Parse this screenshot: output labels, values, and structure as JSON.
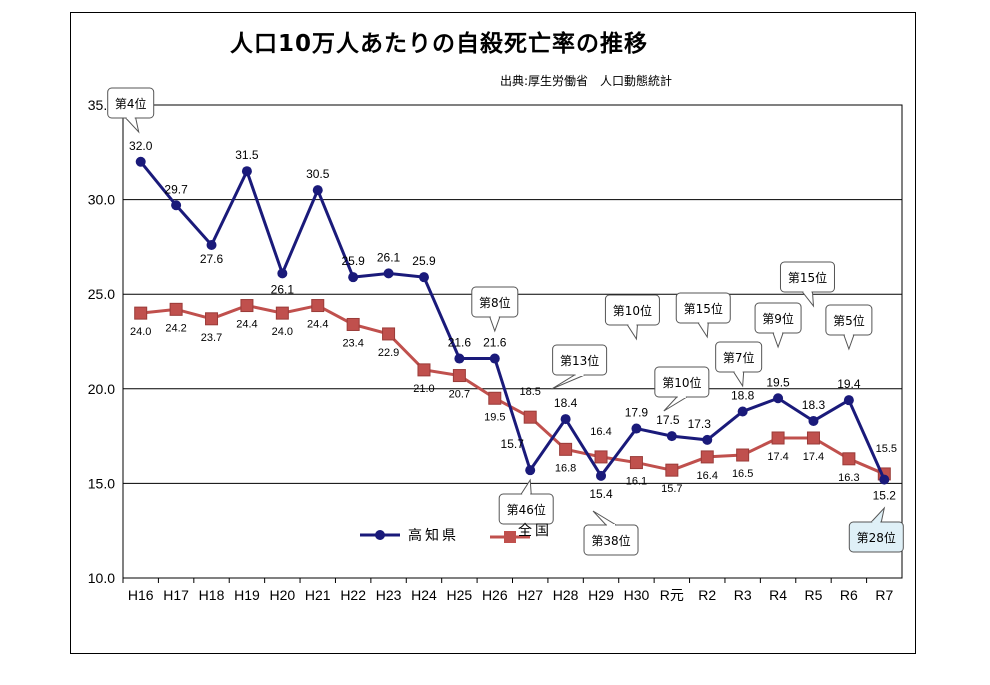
{
  "title": "人口10万人あたりの自殺死亡率の推移",
  "source": "出典:厚生労働省　人口動態統計",
  "colors": {
    "kochi": "#1a1a7a",
    "national": "#c0504d",
    "national_stroke": "#9a3b38",
    "highlight_box": "#dff0f7"
  },
  "chart_data": {
    "type": "line",
    "categories": [
      "H16",
      "H17",
      "H18",
      "H19",
      "H20",
      "H21",
      "H22",
      "H23",
      "H24",
      "H25",
      "H26",
      "H27",
      "H28",
      "H29",
      "H30",
      "R元",
      "R2",
      "R3",
      "R4",
      "R5",
      "R6",
      "R7"
    ],
    "ylim": [
      10.0,
      35.0
    ],
    "yticks": [
      "10.0",
      "15.0",
      "20.0",
      "25.0",
      "30.0",
      "35.0"
    ],
    "grid": true,
    "legend_position": "bottom-left",
    "series": [
      {
        "name": "高知県",
        "values": [
          32.0,
          29.7,
          27.6,
          31.5,
          26.1,
          30.5,
          25.9,
          26.1,
          25.9,
          21.6,
          21.6,
          15.7,
          18.4,
          15.4,
          17.9,
          17.5,
          17.3,
          18.8,
          19.5,
          18.3,
          19.4,
          15.2
        ]
      },
      {
        "name": "全国",
        "values": [
          24.0,
          24.2,
          23.7,
          24.4,
          24.0,
          24.4,
          23.4,
          22.9,
          21.0,
          20.7,
          19.5,
          18.5,
          16.8,
          16.4,
          16.1,
          15.7,
          16.4,
          16.5,
          17.4,
          17.4,
          16.3,
          15.5
        ]
      }
    ],
    "kochi_labels": [
      "32.0",
      "29.7",
      "27.6",
      "31.5",
      "26.1",
      "30.5",
      "25.9",
      "26.1",
      "25.9",
      "21.6",
      "21.6",
      "15.7",
      "18.4",
      "15.4",
      "17.9",
      "17.5",
      "17.3",
      "18.8",
      "19.5",
      "18.3",
      "19.4",
      "15.2"
    ],
    "national_labels": [
      "24.0",
      "24.2",
      "23.7",
      "24.4",
      "24.0",
      "24.4",
      "23.4",
      "22.9",
      "21.0",
      "20.7",
      "19.5",
      "18.5",
      "16.8",
      "16.4",
      "16.1",
      "15.7",
      "16.4",
      "16.5",
      "17.4",
      "17.4",
      "16.3",
      "15.5"
    ],
    "rank_callouts": [
      {
        "text": "第4位",
        "category": "H16"
      },
      {
        "text": "第8位",
        "category": "H26"
      },
      {
        "text": "第46位",
        "category": "H27"
      },
      {
        "text": "第13位",
        "category": "H28"
      },
      {
        "text": "第38位",
        "category": "H29"
      },
      {
        "text": "第10位",
        "category": "H30"
      },
      {
        "text": "第10位",
        "category": "R元"
      },
      {
        "text": "第15位",
        "category": "R2"
      },
      {
        "text": "第7位",
        "category": "R3"
      },
      {
        "text": "第9位",
        "category": "R4"
      },
      {
        "text": "第15位",
        "category": "R5"
      },
      {
        "text": "第5位",
        "category": "R6"
      },
      {
        "text": "第28位",
        "category": "R7"
      }
    ]
  }
}
